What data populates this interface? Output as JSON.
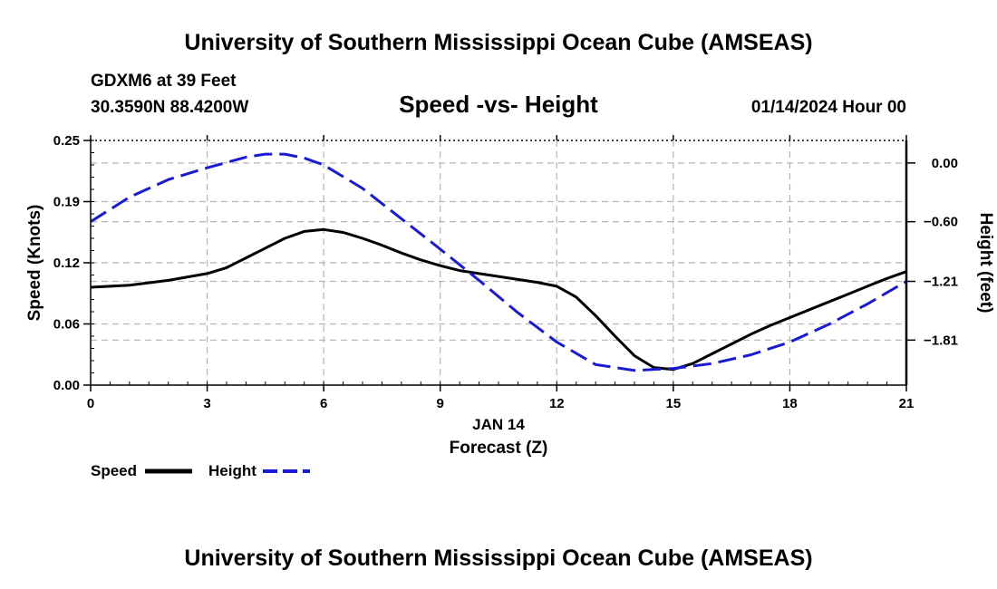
{
  "header": {
    "main_title": "University of Southern Mississippi Ocean Cube (AMSEAS)",
    "station_line": "GDXM6 at 39 Feet",
    "coordinates": "30.3590N  88.4200W",
    "date_line": "01/14/2024 Hour 00",
    "footer_title": "University of Southern Mississippi Ocean Cube (AMSEAS)"
  },
  "colors": {
    "speed_line": "#000000",
    "height_line": "#1a1ad6",
    "grid": "#b4b4b4"
  },
  "chart_data": {
    "type": "line",
    "title": "Speed -vs- Height",
    "xlabel": "Forecast (Z)",
    "x_sublabel": "JAN 14",
    "ylabel": "Speed (Knots)",
    "y2label": "Height (feet)",
    "xlim": [
      0,
      21
    ],
    "ylim": [
      0,
      0.25
    ],
    "y2lim": [
      -2.27,
      0.23
    ],
    "x_ticks": [
      0,
      3,
      6,
      9,
      12,
      15,
      18,
      21
    ],
    "x_tick_labels": [
      "0",
      "3",
      "6",
      "9",
      "12",
      "15",
      "18",
      "21"
    ],
    "y_ticks": [
      0,
      0.0625,
      0.125,
      0.1875,
      0.25
    ],
    "y_tick_labels": [
      "0.00",
      "0.06",
      "0.12",
      "0.19",
      "0.25"
    ],
    "y2_ticks": [
      0.0,
      -0.6,
      -1.21,
      -1.81
    ],
    "y2_tick_labels": [
      "0.00",
      "−0.60",
      "−1.21",
      "−1.81"
    ],
    "grid": true,
    "legend_position": "bottom-left",
    "series": [
      {
        "name": "Speed",
        "axis": "left",
        "style": "solid",
        "x": [
          0,
          1,
          2,
          3,
          3.5,
          4,
          4.5,
          5,
          5.5,
          6,
          6.5,
          7,
          7.5,
          8,
          8.5,
          9,
          9.5,
          10,
          10.5,
          11,
          11.5,
          12,
          12.5,
          13,
          13.5,
          14,
          14.5,
          15,
          15.5,
          16,
          16.5,
          17,
          17.5,
          18,
          18.5,
          19,
          19.5,
          20,
          20.5,
          21
        ],
        "values": [
          0.1,
          0.102,
          0.107,
          0.114,
          0.12,
          0.13,
          0.14,
          0.15,
          0.157,
          0.159,
          0.156,
          0.15,
          0.143,
          0.135,
          0.128,
          0.122,
          0.117,
          0.114,
          0.111,
          0.108,
          0.105,
          0.101,
          0.09,
          0.071,
          0.05,
          0.03,
          0.018,
          0.016,
          0.022,
          0.032,
          0.042,
          0.052,
          0.061,
          0.069,
          0.077,
          0.085,
          0.093,
          0.101,
          0.109,
          0.116
        ]
      },
      {
        "name": "Height",
        "axis": "right",
        "style": "dashed",
        "x": [
          0,
          1,
          2,
          3,
          4,
          4.5,
          5,
          5.5,
          6,
          7,
          8,
          9,
          10,
          11,
          12,
          13,
          14,
          15,
          16,
          17,
          18,
          19,
          20,
          21
        ],
        "values": [
          -0.6,
          -0.35,
          -0.17,
          -0.05,
          0.06,
          0.09,
          0.09,
          0.05,
          -0.02,
          -0.26,
          -0.57,
          -0.88,
          -1.2,
          -1.53,
          -1.83,
          -2.06,
          -2.12,
          -2.1,
          -2.05,
          -1.96,
          -1.83,
          -1.65,
          -1.44,
          -1.21
        ]
      }
    ]
  }
}
